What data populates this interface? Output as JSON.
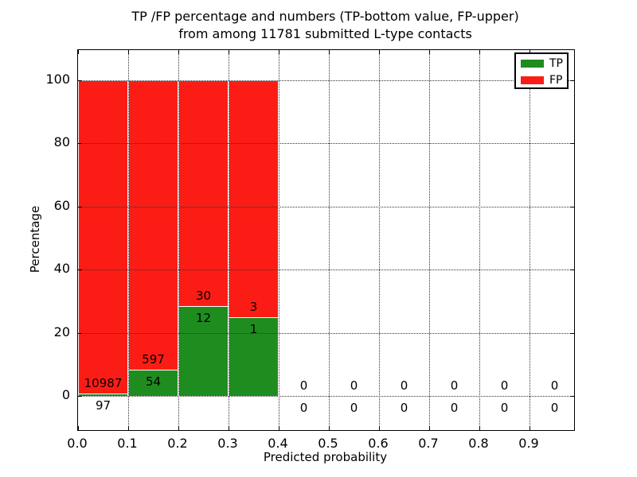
{
  "title": {
    "line1": "TP /FP percentage and numbers (TP-bottom value, FP-upper)",
    "line2": "from among 11781 submitted L-type contacts"
  },
  "colors": {
    "tp": "#1f8c1f",
    "fp": "#fb1d15",
    "grid": "#333333",
    "spine": "#000000"
  },
  "legend": {
    "entries": [
      {
        "label": "TP",
        "color": "#1f8c1f"
      },
      {
        "label": "FP",
        "color": "#fb1d15"
      }
    ]
  },
  "chart_data": {
    "type": "bar",
    "stacked": true,
    "percentage_normalized": true,
    "title": "TP /FP percentage and numbers (TP-bottom value, FP-upper) from among 11781 submitted L-type contacts",
    "xlabel": "Predicted probability",
    "ylabel": "Percentage",
    "total_contacts": 11781,
    "x_tick_labels": [
      "0.0",
      "0.1",
      "0.2",
      "0.3",
      "0.4",
      "0.5",
      "0.6",
      "0.7",
      "0.8",
      "0.9"
    ],
    "x_tick_values": [
      0.0,
      0.1,
      0.2,
      0.3,
      0.4,
      0.5,
      0.6,
      0.7,
      0.8,
      0.9
    ],
    "y_tick_labels": [
      "0",
      "20",
      "40",
      "60",
      "80",
      "100"
    ],
    "y_tick_values": [
      0,
      20,
      40,
      60,
      80,
      100
    ],
    "ylim": [
      -11,
      110
    ],
    "xlim": [
      0,
      0.989
    ],
    "bin_width": 0.1,
    "grid": "dotted",
    "legend_position": "upper right",
    "series": [
      {
        "name": "TP",
        "color": "#1f8c1f",
        "values": [
          97,
          54,
          12,
          1,
          0,
          0,
          0,
          0,
          0,
          0
        ]
      },
      {
        "name": "FP",
        "color": "#fb1d15",
        "values": [
          10987,
          597,
          30,
          3,
          0,
          0,
          0,
          0,
          0,
          0
        ]
      }
    ],
    "bins": [
      {
        "x0": 0.0,
        "tp": 97,
        "fp": 10987,
        "tp_label": "97",
        "fp_label": "10987"
      },
      {
        "x0": 0.1,
        "tp": 54,
        "fp": 597,
        "tp_label": "54",
        "fp_label": "597"
      },
      {
        "x0": 0.2,
        "tp": 12,
        "fp": 30,
        "tp_label": "12",
        "fp_label": "30"
      },
      {
        "x0": 0.3,
        "tp": 1,
        "fp": 3,
        "tp_label": "1",
        "fp_label": "3"
      },
      {
        "x0": 0.4,
        "tp": 0,
        "fp": 0,
        "tp_label": "0",
        "fp_label": "0"
      },
      {
        "x0": 0.5,
        "tp": 0,
        "fp": 0,
        "tp_label": "0",
        "fp_label": "0"
      },
      {
        "x0": 0.6,
        "tp": 0,
        "fp": 0,
        "tp_label": "0",
        "fp_label": "0"
      },
      {
        "x0": 0.7,
        "tp": 0,
        "fp": 0,
        "tp_label": "0",
        "fp_label": "0"
      },
      {
        "x0": 0.8,
        "tp": 0,
        "fp": 0,
        "tp_label": "0",
        "fp_label": "0"
      },
      {
        "x0": 0.9,
        "tp": 0,
        "fp": 0,
        "tp_label": "0",
        "fp_label": "0"
      }
    ]
  }
}
